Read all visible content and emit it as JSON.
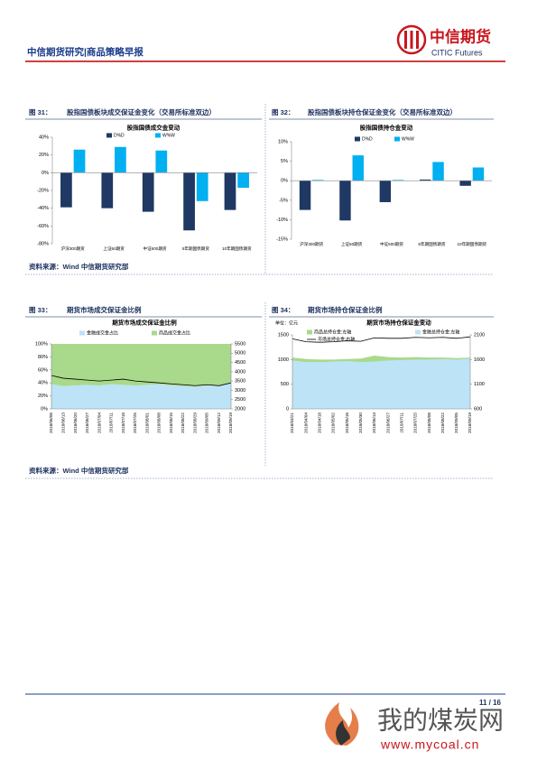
{
  "header": {
    "title": "中信期货研究|商品策略早报",
    "logo_cn": "中信期货",
    "logo_en": "CITIC Futures"
  },
  "figures": [
    {
      "label": "图 31：",
      "caption": "股指国债板块成交保证金变化（交易所标准双边）"
    },
    {
      "label": "图 32：",
      "caption": "股指国债板块持仓保证金变化（交易所标准双边）"
    },
    {
      "label": "图 33：",
      "caption": "期货市场成交保证金比例"
    },
    {
      "label": "图 34：",
      "caption": "期货市场持仓保证金比例"
    }
  ],
  "sources": [
    "资料来源：Wind 中信期货研究部",
    "资料来源：Wind 中信期货研究部"
  ],
  "footer": {
    "page": "11 / 16"
  },
  "watermark": {
    "name": "我的煤炭网",
    "url": "www.mycoal.cn"
  },
  "chart_data": [
    {
      "type": "bar",
      "title": "股指国债成交金变动",
      "categories": [
        "沪深300期货",
        "上证50期货",
        "中证500期货",
        "5年期国债期货",
        "10年期国债期货"
      ],
      "series": [
        {
          "name": "D%D",
          "color": "#1f3864",
          "values": [
            -39,
            -40,
            -44,
            -65,
            -42
          ]
        },
        {
          "name": "W%W",
          "color": "#00b0f0",
          "values": [
            26,
            29,
            25,
            -32,
            -17
          ]
        }
      ],
      "ylim": [
        -80,
        40
      ],
      "yticks": [
        {
          "value": -80,
          "label": "-80%"
        },
        {
          "value": -60,
          "label": "-60%"
        },
        {
          "value": -40,
          "label": "-40%"
        },
        {
          "value": -20,
          "label": "-20%"
        },
        {
          "value": 0,
          "label": "0%"
        },
        {
          "value": 20,
          "label": "20%"
        },
        {
          "value": 40,
          "label": "40%"
        }
      ]
    },
    {
      "type": "bar",
      "title": "股指国债持仓金变动",
      "categories": [
        "沪深300期货",
        "上证50期货",
        "中证500期货",
        "5年期国债期货",
        "10年期国债期货"
      ],
      "series": [
        {
          "name": "D%D",
          "color": "#1f3864",
          "values": [
            -7.5,
            -10.2,
            -5.5,
            0.3,
            -1.3
          ]
        },
        {
          "name": "W%W",
          "color": "#00b0f0",
          "values": [
            0.2,
            6.5,
            0.2,
            4.8,
            3.4
          ]
        }
      ],
      "ylim": [
        -15,
        10
      ],
      "yticks": [
        {
          "value": -15,
          "label": "-15%"
        },
        {
          "value": -10,
          "label": "-10%"
        },
        {
          "value": -5,
          "label": "-5%"
        },
        {
          "value": 0,
          "label": "0%"
        },
        {
          "value": 5,
          "label": "5%"
        },
        {
          "value": 10,
          "label": "10%"
        }
      ]
    },
    {
      "type": "area",
      "title": "期货市场成交保证金比例",
      "stacked": true,
      "categories": [
        "2018/06/06",
        "2018/06/13",
        "2018/06/20",
        "2018/06/27",
        "2018/07/04",
        "2018/07/11",
        "2018/07/18",
        "2018/07/25",
        "2018/08/01",
        "2018/08/08",
        "2018/08/15",
        "2018/08/22",
        "2018/08/29",
        "2018/09/05",
        "2018/09/12",
        "2018/09/19"
      ],
      "series": [
        {
          "name": "金融成交金占比",
          "color": "#bde3f7",
          "values": [
            38,
            35,
            36,
            37,
            36,
            38,
            37,
            36,
            37,
            38,
            36,
            35,
            34,
            36,
            35,
            40
          ]
        },
        {
          "name": "商品成交金占比",
          "color": "#a9d98b",
          "values": [
            62,
            65,
            64,
            63,
            64,
            62,
            63,
            64,
            63,
            62,
            64,
            65,
            66,
            64,
            65,
            60
          ]
        },
        {
          "color": "#000000",
          "axis": "y2",
          "values": [
            3800,
            3650,
            3600,
            3550,
            3500,
            3550,
            3600,
            3500,
            3450,
            3400,
            3350,
            3300,
            3250,
            3300,
            3250,
            3400
          ]
        }
      ],
      "ylim": [
        0,
        100
      ],
      "yticks": [
        {
          "value": 0,
          "label": "0%"
        },
        {
          "value": 20,
          "label": "20%"
        },
        {
          "value": 40,
          "label": "40%"
        },
        {
          "value": 60,
          "label": "60%"
        },
        {
          "value": 80,
          "label": "80%"
        },
        {
          "value": 100,
          "label": "100%"
        }
      ],
      "y2lim": [
        2000,
        5500
      ],
      "y2ticks": [
        2000,
        2500,
        3000,
        3500,
        4000,
        4500,
        5000,
        5500
      ]
    },
    {
      "type": "area",
      "title": "期货市场持仓保证金变动",
      "unit": "单位：亿元",
      "stacked": false,
      "categories": [
        "2018/03/21",
        "2018/04/04",
        "2018/04/18",
        "2018/05/02",
        "2018/05/16",
        "2018/05/30",
        "2018/06/13",
        "2018/06/27",
        "2018/07/11",
        "2018/07/25",
        "2018/08/08",
        "2018/08/22",
        "2018/09/05",
        "2018/09/19"
      ],
      "series": [
        {
          "name": "商品总持仓金:左轴",
          "color": "#a9d98b",
          "values": [
            1040,
            1010,
            1000,
            1000,
            1010,
            1020,
            1080,
            1050,
            1040,
            1050,
            1040,
            1040,
            1030,
            1040
          ]
        },
        {
          "name": "金融总持仓金:左轴",
          "color": "#bde3f7",
          "values": [
            980,
            950,
            950,
            960,
            970,
            950,
            960,
            980,
            990,
            1000,
            1000,
            1010,
            1000,
            1020
          ]
        },
        {
          "name": "市场总持仓金:右轴",
          "color": "#000000",
          "axis": "y2",
          "values": [
            2020,
            1960,
            1950,
            1960,
            1980,
            1970,
            2040,
            2030,
            2030,
            2050,
            2040,
            2050,
            2030,
            2060
          ]
        }
      ],
      "ylim": [
        0,
        1500
      ],
      "yticks": [
        0,
        500,
        1000,
        1500
      ],
      "y2lim": [
        600,
        2100
      ],
      "y2ticks": [
        600,
        1100,
        1600,
        2100
      ]
    }
  ]
}
